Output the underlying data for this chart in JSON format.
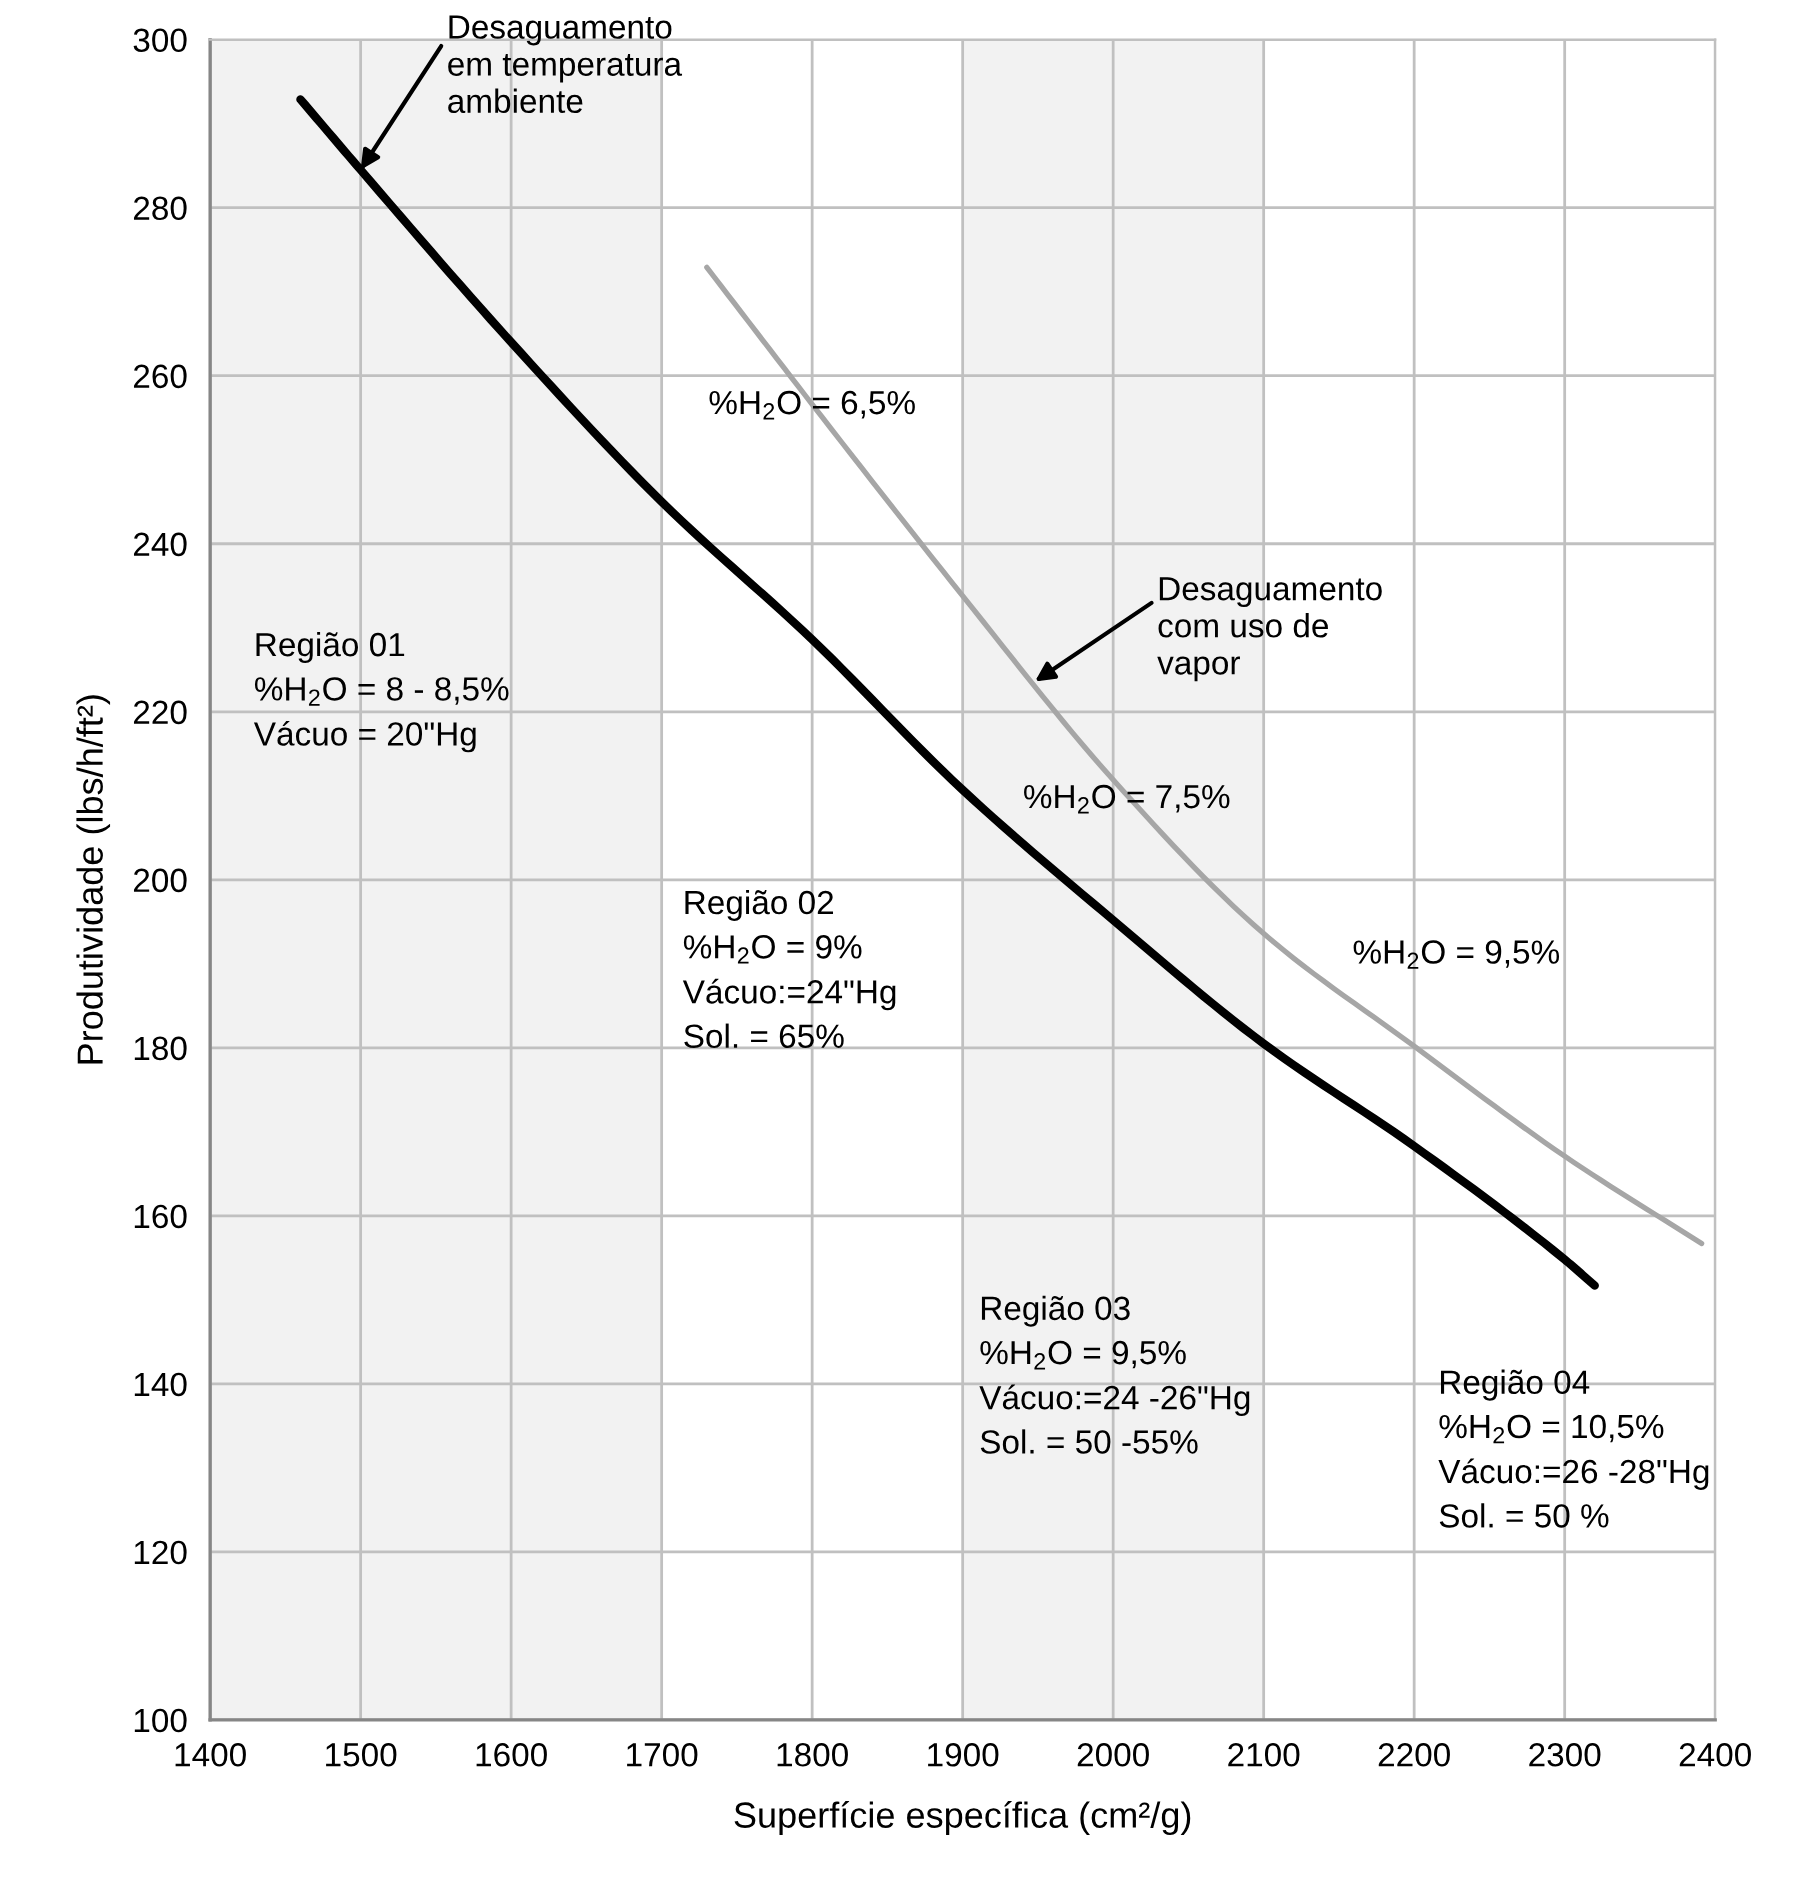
{
  "chart_data": {
    "type": "line",
    "xlabel": "Superfície específica (cm²/g)",
    "ylabel": "Produtividade (lbs/h/ft²)",
    "xlim": [
      1400,
      2400
    ],
    "xticks": [
      1400,
      1500,
      1600,
      1700,
      1800,
      1900,
      2000,
      2100,
      2200,
      2300,
      2400
    ],
    "ylim": [
      100,
      300
    ],
    "yticks": [
      100,
      120,
      140,
      160,
      180,
      200,
      220,
      240,
      260,
      280,
      300
    ],
    "grid": true,
    "series": [
      {
        "color": "#000000",
        "x": [
          1460,
          1500,
          1600,
          1700,
          1800,
          1900,
          2000,
          2100,
          2200,
          2300,
          2320
        ],
        "values": [
          292.9,
          284.5,
          264,
          245,
          228.6,
          210.7,
          195.2,
          180.5,
          168.3,
          154.8,
          151.7
        ]
      },
      {
        "color": "#a6a6a6",
        "x": [
          1730,
          1800,
          1900,
          2000,
          2100,
          2200,
          2300,
          2391
        ],
        "values": [
          272.9,
          256.6,
          233.8,
          211.9,
          193.6,
          180.2,
          167.1,
          156.7
        ]
      }
    ],
    "bands": [
      {
        "axis": "x",
        "from": 1400,
        "to": 1700,
        "color": "#f2f2f2"
      },
      {
        "axis": "x",
        "from": 1900,
        "to": 2100,
        "color": "#f2f2f2"
      }
    ],
    "annotations": [
      {
        "text": "Desaguamento\nem temperatura\nambiente",
        "x": 1500,
        "y": 284.5
      },
      {
        "text": "Desaguamento\ncom uso de\nvapor",
        "x": 1948,
        "y": 223.6
      },
      "%H$_{2}$O = 6,5%",
      "%H$_{2}$O = 7,5%",
      "%H$_{2}$O = 9,5%",
      "Região 01\n%H$_{2}$O = 8 - 8,5%\nVácuo = 20\"Hg",
      "Região 02\n%H$_{2}$O = 9%\nVácuo:=24\"Hg\nSol. = 65%",
      "Região 03\n%H$_{2}$O = 9,5%\nVácuo:=24 -26\"Hg\nSol. = 50 -55%",
      "Região 04\n%H$_{2}$O = 10,5%\nVácuo:=26 -28\"Hg\nSol. = 50 %"
    ]
  }
}
